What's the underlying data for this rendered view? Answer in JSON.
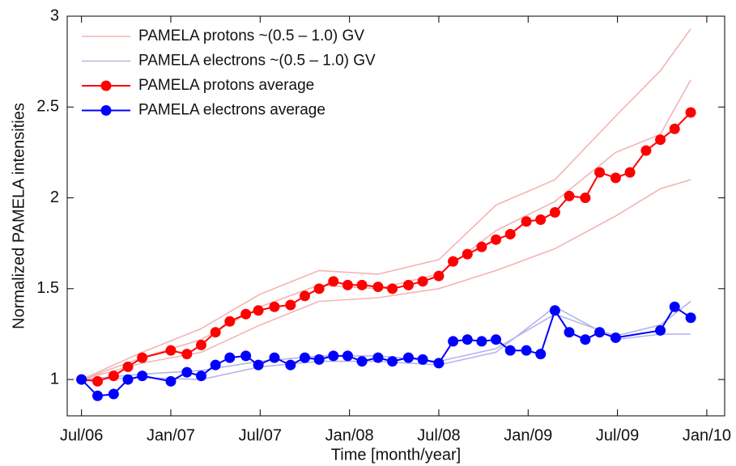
{
  "chart_data": {
    "type": "line",
    "x_label": "Time [month/year]",
    "y_label": "Normalized PAMELA intensities",
    "xlim": [
      2006.42,
      2010.1
    ],
    "ylim": [
      0.8,
      3
    ],
    "xticks": [
      {
        "value": 2006.5,
        "label": "Jul/06"
      },
      {
        "value": 2007.0,
        "label": "Jan/07"
      },
      {
        "value": 2007.5,
        "label": "Jul/07"
      },
      {
        "value": 2008.0,
        "label": "Jan/08"
      },
      {
        "value": 2008.5,
        "label": "Jul/08"
      },
      {
        "value": 2009.0,
        "label": "Jan/09"
      },
      {
        "value": 2009.5,
        "label": "Jul/09"
      },
      {
        "value": 2010.0,
        "label": "Jan/10"
      }
    ],
    "yticks": [
      1,
      1.5,
      2,
      2.5,
      3
    ],
    "grid": false,
    "legend": "upper left",
    "series": [
      {
        "name": "PAMELA protons ~(0.5 – 1.0) GV",
        "color": "#f4b4b4",
        "x": [
          2006.5,
          2006.84,
          2007.17,
          2007.5,
          2007.83,
          2008.16,
          2008.5,
          2008.82,
          2009.15,
          2009.49,
          2009.74,
          2009.91
        ],
        "values": [
          1.0,
          1.15,
          1.28,
          1.47,
          1.6,
          1.58,
          1.66,
          1.96,
          2.1,
          2.45,
          2.7,
          2.93
        ]
      },
      {
        "color": "#f4b4b4",
        "x": [
          2006.5,
          2006.84,
          2007.17,
          2007.5,
          2007.83,
          2008.16,
          2008.5,
          2008.82,
          2009.15,
          2009.49,
          2009.74,
          2009.91
        ],
        "values": [
          1.0,
          1.12,
          1.22,
          1.4,
          1.52,
          1.5,
          1.58,
          1.82,
          1.98,
          2.25,
          2.35,
          2.65
        ]
      },
      {
        "color": "#f4b4b4",
        "x": [
          2006.5,
          2006.84,
          2007.17,
          2007.5,
          2007.83,
          2008.16,
          2008.5,
          2008.82,
          2009.15,
          2009.49,
          2009.74,
          2009.91
        ],
        "values": [
          1.0,
          1.09,
          1.15,
          1.3,
          1.43,
          1.45,
          1.5,
          1.6,
          1.72,
          1.9,
          2.05,
          2.1
        ]
      },
      {
        "name": "PAMELA electrons ~(0.5 – 1.0) GV",
        "color": "#b4b4ec",
        "x": [
          2006.5,
          2006.84,
          2007.17,
          2007.5,
          2007.83,
          2008.16,
          2008.5,
          2008.82,
          2009.15,
          2009.49,
          2009.74,
          2009.91
        ],
        "values": [
          1.0,
          1.03,
          1.05,
          1.1,
          1.13,
          1.13,
          1.1,
          1.17,
          1.36,
          1.24,
          1.3,
          1.43
        ]
      },
      {
        "color": "#b4b4ec",
        "x": [
          2006.5,
          2006.84,
          2007.17,
          2007.5,
          2007.83,
          2008.16,
          2008.5,
          2008.82,
          2009.15,
          2009.49,
          2009.74,
          2009.91
        ],
        "values": [
          1.0,
          1.01,
          1.0,
          1.07,
          1.1,
          1.1,
          1.08,
          1.15,
          1.4,
          1.22,
          1.25,
          1.25
        ]
      },
      {
        "name": "PAMELA protons average",
        "color": "#ff0000",
        "marker": "o",
        "x": [
          2006.5,
          2006.59,
          2006.68,
          2006.76,
          2006.84,
          2007.0,
          2007.09,
          2007.17,
          2007.25,
          2007.33,
          2007.42,
          2007.49,
          2007.58,
          2007.67,
          2007.75,
          2007.83,
          2007.91,
          2007.99,
          2008.07,
          2008.16,
          2008.24,
          2008.33,
          2008.41,
          2008.5,
          2008.58,
          2008.66,
          2008.74,
          2008.82,
          2008.9,
          2008.99,
          2009.07,
          2009.15,
          2009.23,
          2009.32,
          2009.4,
          2009.49,
          2009.57,
          2009.66,
          2009.74,
          2009.82,
          2009.91
        ],
        "values": [
          1.0,
          0.99,
          1.02,
          1.07,
          1.12,
          1.16,
          1.14,
          1.19,
          1.26,
          1.32,
          1.36,
          1.38,
          1.4,
          1.41,
          1.46,
          1.5,
          1.54,
          1.52,
          1.52,
          1.51,
          1.5,
          1.52,
          1.54,
          1.57,
          1.65,
          1.69,
          1.73,
          1.77,
          1.8,
          1.87,
          1.88,
          1.92,
          2.01,
          2.0,
          2.14,
          2.11,
          2.14,
          2.26,
          2.32,
          2.38,
          2.47
        ]
      },
      {
        "name": "PAMELA electrons average",
        "color": "#0000ff",
        "marker": "o",
        "x": [
          2006.5,
          2006.59,
          2006.68,
          2006.76,
          2006.84,
          2007.0,
          2007.09,
          2007.17,
          2007.25,
          2007.33,
          2007.42,
          2007.49,
          2007.58,
          2007.67,
          2007.75,
          2007.83,
          2007.91,
          2007.99,
          2008.07,
          2008.16,
          2008.24,
          2008.33,
          2008.41,
          2008.5,
          2008.58,
          2008.66,
          2008.74,
          2008.82,
          2008.9,
          2008.99,
          2009.07,
          2009.15,
          2009.23,
          2009.32,
          2009.4,
          2009.49,
          2009.74,
          2009.82,
          2009.91
        ],
        "values": [
          1.0,
          0.91,
          0.92,
          1.0,
          1.02,
          0.99,
          1.04,
          1.02,
          1.08,
          1.12,
          1.13,
          1.08,
          1.12,
          1.08,
          1.12,
          1.11,
          1.13,
          1.13,
          1.1,
          1.12,
          1.1,
          1.12,
          1.11,
          1.09,
          1.21,
          1.22,
          1.21,
          1.22,
          1.16,
          1.16,
          1.14,
          1.38,
          1.26,
          1.22,
          1.26,
          1.23,
          1.27,
          1.4,
          1.34
        ]
      }
    ]
  }
}
